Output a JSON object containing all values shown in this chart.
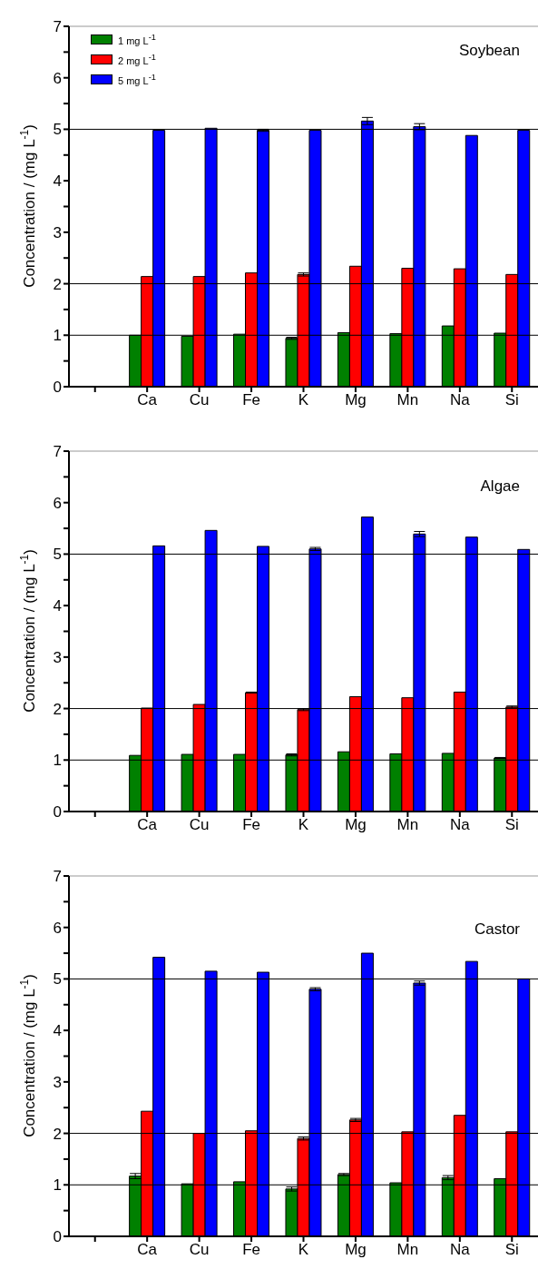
{
  "chart_data": [
    {
      "type": "bar",
      "title": "Soybean",
      "ylabel": "Concentration / (mg L$^{-1}$)",
      "categories": [
        null,
        "Ca",
        "Cu",
        "Fe",
        "K",
        "Mg",
        "Mn",
        "Na",
        "Si"
      ],
      "series": [
        {
          "name": "1 mg L$^{-1}$",
          "color": "#008000",
          "values": [
            null,
            1.0,
            0.98,
            1.02,
            0.94,
            1.05,
            1.03,
            1.18,
            1.04
          ],
          "errors": [
            null,
            null,
            null,
            null,
            0.02,
            null,
            null,
            null,
            null
          ]
        },
        {
          "name": "2 mg L$^{-1}$",
          "color": "#ff0000",
          "values": [
            null,
            2.14,
            2.14,
            2.21,
            2.18,
            2.34,
            2.3,
            2.29,
            2.18
          ],
          "errors": [
            null,
            null,
            null,
            null,
            0.03,
            null,
            null,
            null,
            null
          ]
        },
        {
          "name": "5 mg L$^{-1}$",
          "color": "#0000ff",
          "values": [
            null,
            4.98,
            5.02,
            4.98,
            4.98,
            5.16,
            5.05,
            4.88,
            4.98
          ],
          "errors": [
            null,
            null,
            null,
            0.02,
            null,
            0.07,
            0.06,
            null,
            null
          ]
        }
      ],
      "ylim": [
        0,
        7
      ],
      "yticks": [
        0,
        {
          "value": 0.5,
          "label": null
        },
        1,
        {
          "value": 1.5,
          "label": null
        },
        2,
        {
          "value": 2.5,
          "label": null
        },
        3,
        {
          "value": 3.5,
          "label": null
        },
        4,
        {
          "value": 4.5,
          "label": null
        },
        5,
        {
          "value": 5.5,
          "label": null
        },
        6,
        {
          "value": 6.5,
          "label": null
        },
        7
      ],
      "ref_lines": [
        {
          "axis": "y",
          "value": 1,
          "color": "#000000"
        },
        {
          "axis": "y",
          "value": 2,
          "color": "#000000"
        },
        {
          "axis": "y",
          "value": 5,
          "color": "#000000"
        }
      ],
      "legend": "top left"
    },
    {
      "type": "bar",
      "title": "Algae",
      "ylabel": "Concentration / (mg L$^{-1}$)",
      "categories": [
        null,
        "Ca",
        "Cu",
        "Fe",
        "K",
        "Mg",
        "Mn",
        "Na",
        "Si"
      ],
      "series": [
        {
          "color": "#008000",
          "values": [
            null,
            1.09,
            1.11,
            1.11,
            1.1,
            1.16,
            1.12,
            1.13,
            1.04
          ],
          "errors": [
            null,
            null,
            null,
            null,
            0.02,
            null,
            null,
            null,
            0.01
          ]
        },
        {
          "color": "#ff0000",
          "values": [
            null,
            2.01,
            2.08,
            2.31,
            1.98,
            2.23,
            2.21,
            2.32,
            2.03
          ],
          "errors": [
            null,
            null,
            null,
            0.01,
            0.02,
            null,
            null,
            null,
            0.02
          ]
        },
        {
          "color": "#0000ff",
          "values": [
            null,
            5.16,
            5.46,
            5.15,
            5.1,
            5.72,
            5.39,
            5.33,
            5.09
          ],
          "errors": [
            null,
            null,
            null,
            null,
            0.03,
            null,
            0.05,
            null,
            null
          ]
        }
      ],
      "ylim": [
        0,
        7
      ],
      "yticks": [
        0,
        {
          "value": 0.5,
          "label": null
        },
        1,
        {
          "value": 1.5,
          "label": null
        },
        2,
        {
          "value": 2.5,
          "label": null
        },
        3,
        {
          "value": 3.5,
          "label": null
        },
        4,
        {
          "value": 4.5,
          "label": null
        },
        5,
        {
          "value": 5.5,
          "label": null
        },
        6,
        {
          "value": 6.5,
          "label": null
        },
        7
      ],
      "ref_lines": [
        {
          "axis": "y",
          "value": 1,
          "color": "#000000"
        },
        {
          "axis": "y",
          "value": 2,
          "color": "#000000"
        },
        {
          "axis": "y",
          "value": 5,
          "color": "#000000"
        }
      ]
    },
    {
      "type": "bar",
      "title": "Castor",
      "ylabel": "Concentration / (mg L$^{-1}$)",
      "categories": [
        null,
        "Ca",
        "Cu",
        "Fe",
        "K",
        "Mg",
        "Mn",
        "Na",
        "Si"
      ],
      "series": [
        {
          "color": "#008000",
          "values": [
            null,
            1.17,
            1.02,
            1.06,
            0.92,
            1.2,
            1.04,
            1.14,
            1.12
          ],
          "errors": [
            null,
            0.05,
            null,
            null,
            0.04,
            0.02,
            null,
            0.04,
            null
          ]
        },
        {
          "color": "#ff0000",
          "values": [
            null,
            2.43,
            2.0,
            2.05,
            1.9,
            2.26,
            2.03,
            2.35,
            2.03
          ],
          "errors": [
            null,
            null,
            null,
            null,
            0.03,
            0.03,
            null,
            null,
            null
          ]
        },
        {
          "color": "#0000ff",
          "values": [
            null,
            5.42,
            5.15,
            5.13,
            4.8,
            5.5,
            4.92,
            5.34,
            5.0
          ],
          "errors": [
            null,
            null,
            null,
            null,
            0.03,
            null,
            0.04,
            null,
            null
          ]
        }
      ],
      "ylim": [
        0,
        7
      ],
      "yticks": [
        0,
        {
          "value": 0.5,
          "label": null
        },
        1,
        {
          "value": 1.5,
          "label": null
        },
        2,
        {
          "value": 2.5,
          "label": null
        },
        3,
        {
          "value": 3.5,
          "label": null
        },
        4,
        {
          "value": 4.5,
          "label": null
        },
        5,
        {
          "value": 5.5,
          "label": null
        },
        6,
        {
          "value": 6.5,
          "label": null
        },
        7
      ],
      "ref_lines": [
        {
          "axis": "y",
          "value": 1,
          "color": "#000000"
        },
        {
          "axis": "y",
          "value": 2,
          "color": "#000000"
        },
        {
          "axis": "y",
          "value": 5,
          "color": "#000000"
        }
      ]
    }
  ]
}
